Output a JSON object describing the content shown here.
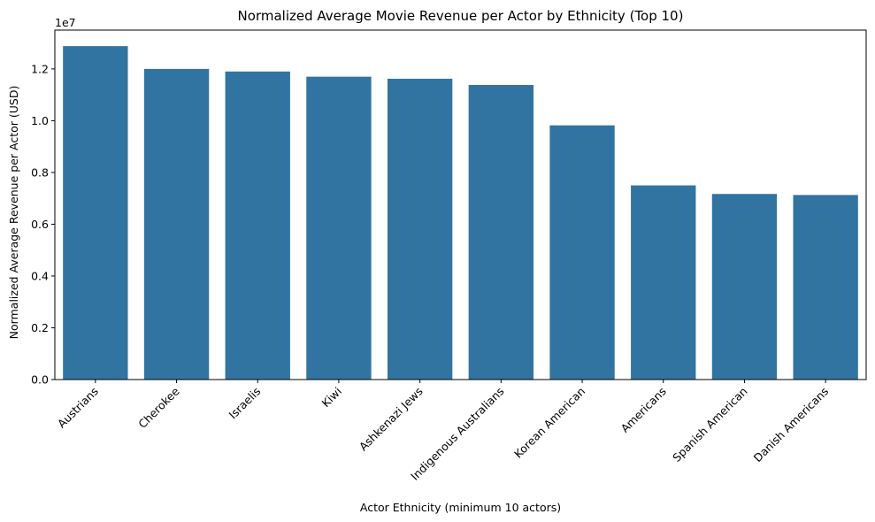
{
  "chart_data": {
    "type": "bar",
    "title": "Normalized Average Movie Revenue per Actor by Ethnicity (Top 10)",
    "xlabel": "Actor Ethnicity (minimum 10 actors)",
    "ylabel": "Normalized Average Revenue per Actor (USD)",
    "y_scale_label": "1e7",
    "y_scale": 10000000,
    "ylim": [
      0,
      13500000
    ],
    "yticks": [
      0,
      2000000,
      4000000,
      6000000,
      8000000,
      10000000,
      12000000
    ],
    "ytick_labels": [
      "0.0",
      "0.2",
      "0.4",
      "0.6",
      "0.8",
      "1.0",
      "1.2"
    ],
    "categories": [
      "Austrians",
      "Cherokee",
      "Israelis",
      "Kiwi",
      "Ashkenazi Jews",
      "Indigenous Australians",
      "Korean American",
      "Americans",
      "Spanish American",
      "Danish Americans"
    ],
    "values": [
      12880000,
      12000000,
      11900000,
      11700000,
      11620000,
      11380000,
      9820000,
      7500000,
      7170000,
      7130000
    ],
    "bar_color": "#3274a1",
    "grid": false,
    "legend": "none"
  }
}
